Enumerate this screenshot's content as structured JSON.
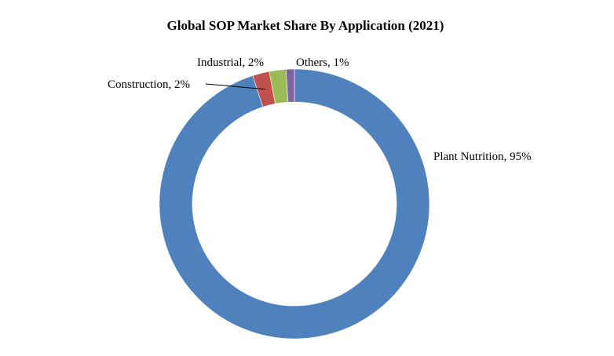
{
  "chart_data": {
    "type": "pie",
    "title": "Global SOP Market Share By Application (2021)",
    "categories": [
      "Plant Nutrition",
      "Construction",
      "Industrial",
      "Others"
    ],
    "values": [
      95,
      2,
      2,
      1
    ],
    "unit": "%",
    "colors": [
      "#4f81bd",
      "#c0504d",
      "#9bbb59",
      "#8064a2"
    ],
    "labels": [
      "Plant Nutrition, 95%",
      "Construction, 2%",
      "Industrial,  2%",
      "Others, 1%"
    ],
    "legend": "none",
    "grid": false
  }
}
